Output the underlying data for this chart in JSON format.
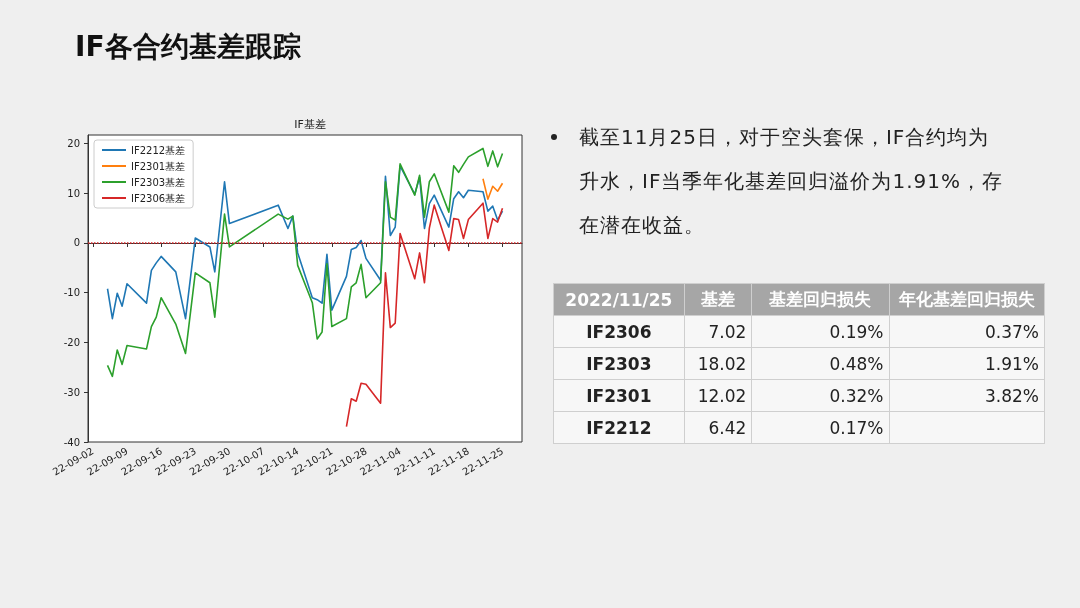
{
  "chart_data": [
    {
      "type": "line",
      "title": "IF各合约基差跟踪",
      "subtitle": "IF基差",
      "xlim": [
        "2022-09-01",
        "2022-11-29"
      ],
      "xticks": [
        {
          "value": "2022-09-02",
          "label": "22-09-02"
        },
        {
          "value": "2022-09-09",
          "label": "22-09-09"
        },
        {
          "value": "2022-09-16",
          "label": "22-09-16"
        },
        {
          "value": "2022-09-23",
          "label": "22-09-23"
        },
        {
          "value": "2022-09-30",
          "label": "22-09-30"
        },
        {
          "value": "2022-10-07",
          "label": "22-10-07"
        },
        {
          "value": "2022-10-14",
          "label": "22-10-14"
        },
        {
          "value": "2022-10-21",
          "label": "22-10-21"
        },
        {
          "value": "2022-10-28",
          "label": "22-10-28"
        },
        {
          "value": "2022-11-04",
          "label": "22-11-04"
        },
        {
          "value": "2022-11-11",
          "label": "22-11-11"
        },
        {
          "value": "2022-11-18",
          "label": "22-11-18"
        },
        {
          "value": "2022-11-25",
          "label": "22-11-25"
        }
      ],
      "ylim": [
        -40,
        21.7
      ],
      "yticks": [
        -40,
        -30,
        -20,
        -10,
        0,
        10,
        20
      ],
      "legend": "top left",
      "ref_lines": [
        {
          "axis": "y",
          "value": 0,
          "color": "#d62728",
          "line_style": "dotted"
        }
      ],
      "series": [
        {
          "name": "IF2212基差",
          "color": "#1f77b4",
          "x": [
            "2022-09-05",
            "2022-09-06",
            "2022-09-07",
            "2022-09-08",
            "2022-09-09",
            "2022-09-13",
            "2022-09-14",
            "2022-09-15",
            "2022-09-16",
            "2022-09-19",
            "2022-09-21",
            "2022-09-23",
            "2022-09-26",
            "2022-09-27",
            "2022-09-29",
            "2022-09-30",
            "2022-10-10",
            "2022-10-12",
            "2022-10-13",
            "2022-10-14",
            "2022-10-17",
            "2022-10-18",
            "2022-10-19",
            "2022-10-20",
            "2022-10-21",
            "2022-10-24",
            "2022-10-25",
            "2022-10-26",
            "2022-10-27",
            "2022-10-28",
            "2022-10-31",
            "2022-11-01",
            "2022-11-02",
            "2022-11-03",
            "2022-11-04",
            "2022-11-07",
            "2022-11-08",
            "2022-11-09",
            "2022-11-10",
            "2022-11-11",
            "2022-11-14",
            "2022-11-15",
            "2022-11-16",
            "2022-11-17",
            "2022-11-18",
            "2022-11-21",
            "2022-11-22",
            "2022-11-23",
            "2022-11-24",
            "2022-11-25"
          ],
          "values": [
            -9.2,
            -15.2,
            -10.1,
            -12.7,
            -8.2,
            -12.1,
            -5.5,
            -4.0,
            -2.7,
            -5.8,
            -15.2,
            1.0,
            -0.8,
            -5.8,
            12.3,
            3.9,
            7.6,
            2.9,
            5.4,
            -2.0,
            -11.0,
            -11.4,
            -12.1,
            -2.3,
            -13.5,
            -6.7,
            -1.3,
            -0.9,
            0.5,
            -3.1,
            -7.5,
            13.4,
            1.5,
            3.2,
            15.5,
            9.8,
            13.2,
            2.9,
            7.9,
            9.6,
            3.2,
            8.9,
            10.3,
            9.1,
            10.6,
            10.3,
            6.4,
            7.4,
            4.6,
            6.4
          ]
        },
        {
          "name": "IF2301基差",
          "color": "#ff7f0e",
          "x": [
            "2022-11-21",
            "2022-11-22",
            "2022-11-23",
            "2022-11-24",
            "2022-11-25"
          ],
          "values": [
            12.9,
            8.8,
            11.4,
            10.4,
            12.0
          ]
        },
        {
          "name": "IF2303基差",
          "color": "#2ca02c",
          "x": [
            "2022-09-05",
            "2022-09-06",
            "2022-09-07",
            "2022-09-08",
            "2022-09-09",
            "2022-09-13",
            "2022-09-14",
            "2022-09-15",
            "2022-09-16",
            "2022-09-19",
            "2022-09-21",
            "2022-09-23",
            "2022-09-26",
            "2022-09-27",
            "2022-09-29",
            "2022-09-30",
            "2022-10-10",
            "2022-10-12",
            "2022-10-13",
            "2022-10-14",
            "2022-10-17",
            "2022-10-18",
            "2022-10-19",
            "2022-10-20",
            "2022-10-21",
            "2022-10-24",
            "2022-10-25",
            "2022-10-26",
            "2022-10-27",
            "2022-10-28",
            "2022-10-31",
            "2022-11-01",
            "2022-11-02",
            "2022-11-03",
            "2022-11-04",
            "2022-11-07",
            "2022-11-08",
            "2022-11-09",
            "2022-11-10",
            "2022-11-11",
            "2022-11-14",
            "2022-11-15",
            "2022-11-16",
            "2022-11-17",
            "2022-11-18",
            "2022-11-21",
            "2022-11-22",
            "2022-11-23",
            "2022-11-24",
            "2022-11-25"
          ],
          "values": [
            -24.6,
            -26.8,
            -21.5,
            -24.4,
            -20.6,
            -21.3,
            -16.8,
            -14.9,
            -11.0,
            -16.3,
            -22.2,
            -6.0,
            -8.0,
            -14.9,
            5.8,
            -0.8,
            5.8,
            4.8,
            5.4,
            -4.5,
            -12.0,
            -19.3,
            -17.9,
            -4.2,
            -16.8,
            -15.2,
            -8.8,
            -8.0,
            -4.3,
            -11.0,
            -8.0,
            12.3,
            5.2,
            4.6,
            15.9,
            9.6,
            13.6,
            5.2,
            12.3,
            13.9,
            6.2,
            15.5,
            14.2,
            15.8,
            17.3,
            19.0,
            15.4,
            18.5,
            15.3,
            18.0
          ]
        },
        {
          "name": "IF2306基差",
          "color": "#d62728",
          "x": [
            "2022-10-24",
            "2022-10-25",
            "2022-10-26",
            "2022-10-27",
            "2022-10-28",
            "2022-10-31",
            "2022-11-01",
            "2022-11-02",
            "2022-11-03",
            "2022-11-04",
            "2022-11-07",
            "2022-11-08",
            "2022-11-09",
            "2022-11-10",
            "2022-11-11",
            "2022-11-14",
            "2022-11-15",
            "2022-11-16",
            "2022-11-17",
            "2022-11-18",
            "2022-11-21",
            "2022-11-22",
            "2022-11-23",
            "2022-11-24",
            "2022-11-25"
          ],
          "values": [
            -36.9,
            -31.3,
            -31.8,
            -28.2,
            -28.4,
            -32.2,
            -6.0,
            -17.0,
            -16.1,
            1.9,
            -7.2,
            -2.0,
            -8.0,
            3.0,
            7.6,
            -1.5,
            4.9,
            4.7,
            0.9,
            4.7,
            8.0,
            0.9,
            4.9,
            4.2,
            7.0
          ]
        }
      ]
    },
    {
      "type": "other",
      "annotations": [
        "截至11月25日，对于空头套保，IF合约均为升水，IF当季年化基差回归溢价为1.91%，存在潜在收益。",
        "2022/11/25",
        "基差",
        "基差回归损失",
        "年化基差回归损失",
        "IF2306",
        "7.02",
        "0.19%",
        "0.37%",
        "IF2303",
        "18.02",
        "0.48%",
        "1.91%",
        "IF2301",
        "12.02",
        "0.32%",
        "3.82%",
        "IF2212",
        "6.42",
        "0.17%"
      ]
    }
  ]
}
